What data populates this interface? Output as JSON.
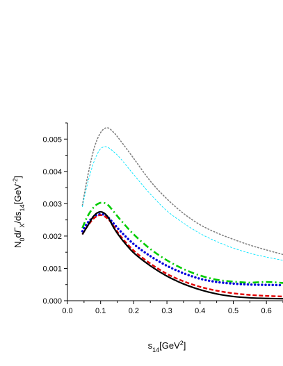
{
  "chart_data": {
    "type": "line",
    "title": "",
    "xlabel": {
      "parts": [
        {
          "text": "s",
          "style": "normal"
        },
        {
          "text": "14",
          "style": "sub"
        },
        {
          "text": "[GeV",
          "style": "normal"
        },
        {
          "text": "2",
          "style": "sup"
        },
        {
          "text": "]",
          "style": "normal"
        }
      ]
    },
    "ylabel": {
      "parts": [
        {
          "text": "N",
          "style": "normal"
        },
        {
          "text": "0",
          "style": "sub"
        },
        {
          "text": "d",
          "style": "normal"
        },
        {
          "text": "Γ",
          "style": "italic"
        },
        {
          "text": "X",
          "style": "sub"
        },
        {
          "text": "/ds",
          "style": "normal"
        },
        {
          "text": "14",
          "style": "sub"
        },
        {
          "text": "[GeV",
          "style": "normal"
        },
        {
          "text": "-2",
          "style": "sup"
        },
        {
          "text": "]",
          "style": "normal"
        }
      ]
    },
    "xlim": [
      0.0,
      0.65
    ],
    "ylim": [
      0.0,
      0.0055
    ],
    "x_ticks": [
      "0.0",
      "0.1",
      "0.2",
      "0.3",
      "0.4",
      "0.5",
      "0.6"
    ],
    "y_ticks": [
      "0.000",
      "0.001",
      "0.002",
      "0.003",
      "0.004",
      "0.005"
    ],
    "grid": false,
    "series": [
      {
        "color": "#808080",
        "style": "dotted-gray",
        "x": [
          0.045,
          0.06,
          0.08,
          0.1,
          0.12,
          0.14,
          0.16,
          0.2,
          0.25,
          0.3,
          0.35,
          0.4,
          0.45,
          0.5,
          0.55,
          0.6,
          0.65
        ],
        "y": [
          0.00295,
          0.0038,
          0.0047,
          0.0052,
          0.00535,
          0.0052,
          0.00495,
          0.0044,
          0.0037,
          0.00315,
          0.0027,
          0.00235,
          0.0021,
          0.0019,
          0.00172,
          0.00157,
          0.00143
        ]
      },
      {
        "color": "#00e5ff",
        "style": "dashed-thin-cyan",
        "x": [
          0.045,
          0.06,
          0.08,
          0.1,
          0.12,
          0.14,
          0.16,
          0.2,
          0.25,
          0.3,
          0.35,
          0.4,
          0.45,
          0.5,
          0.55,
          0.6,
          0.65
        ],
        "y": [
          0.0029,
          0.0036,
          0.0043,
          0.0047,
          0.00475,
          0.0046,
          0.0044,
          0.0039,
          0.0033,
          0.00278,
          0.0024,
          0.00208,
          0.00183,
          0.00163,
          0.00147,
          0.00135,
          0.00125
        ]
      },
      {
        "color": "#00cc00",
        "style": "dashdot-green",
        "x": [
          0.045,
          0.06,
          0.08,
          0.1,
          0.12,
          0.14,
          0.16,
          0.2,
          0.25,
          0.3,
          0.35,
          0.4,
          0.45,
          0.5,
          0.55,
          0.6,
          0.65
        ],
        "y": [
          0.00225,
          0.0026,
          0.0029,
          0.00303,
          0.00298,
          0.00275,
          0.0025,
          0.00205,
          0.0016,
          0.00125,
          0.00098,
          0.00078,
          0.00065,
          0.00059,
          0.00056,
          0.00058,
          0.00055
        ]
      },
      {
        "color": "#0000dd",
        "style": "dotted-blue",
        "x": [
          0.045,
          0.06,
          0.08,
          0.1,
          0.12,
          0.14,
          0.16,
          0.2,
          0.25,
          0.3,
          0.35,
          0.4,
          0.45,
          0.5,
          0.55,
          0.6,
          0.65
        ],
        "y": [
          0.00215,
          0.0024,
          0.0026,
          0.00268,
          0.0026,
          0.00238,
          0.00215,
          0.00175,
          0.00138,
          0.00108,
          0.00085,
          0.00068,
          0.00058,
          0.00053,
          0.0005,
          0.00049,
          0.00048
        ]
      },
      {
        "color": "#e00000",
        "style": "dashed-red",
        "x": [
          0.045,
          0.06,
          0.08,
          0.1,
          0.12,
          0.14,
          0.16,
          0.2,
          0.25,
          0.3,
          0.35,
          0.4,
          0.45,
          0.5,
          0.55,
          0.6,
          0.65
        ],
        "y": [
          0.00205,
          0.0023,
          0.00255,
          0.00265,
          0.00255,
          0.0023,
          0.002,
          0.00155,
          0.00115,
          0.00083,
          0.0006,
          0.00043,
          0.00031,
          0.00023,
          0.00018,
          0.00015,
          0.00013
        ]
      },
      {
        "color": "#000000",
        "style": "solid-black",
        "x": [
          0.045,
          0.06,
          0.08,
          0.1,
          0.12,
          0.14,
          0.16,
          0.2,
          0.25,
          0.3,
          0.35,
          0.4,
          0.45,
          0.5,
          0.55,
          0.6,
          0.65
        ],
        "y": [
          0.00205,
          0.0023,
          0.00263,
          0.00275,
          0.00262,
          0.00225,
          0.00195,
          0.00148,
          0.00108,
          0.00076,
          0.00052,
          0.00034,
          0.00021,
          0.00013,
          9e-05,
          7e-05,
          6e-05
        ]
      }
    ]
  }
}
